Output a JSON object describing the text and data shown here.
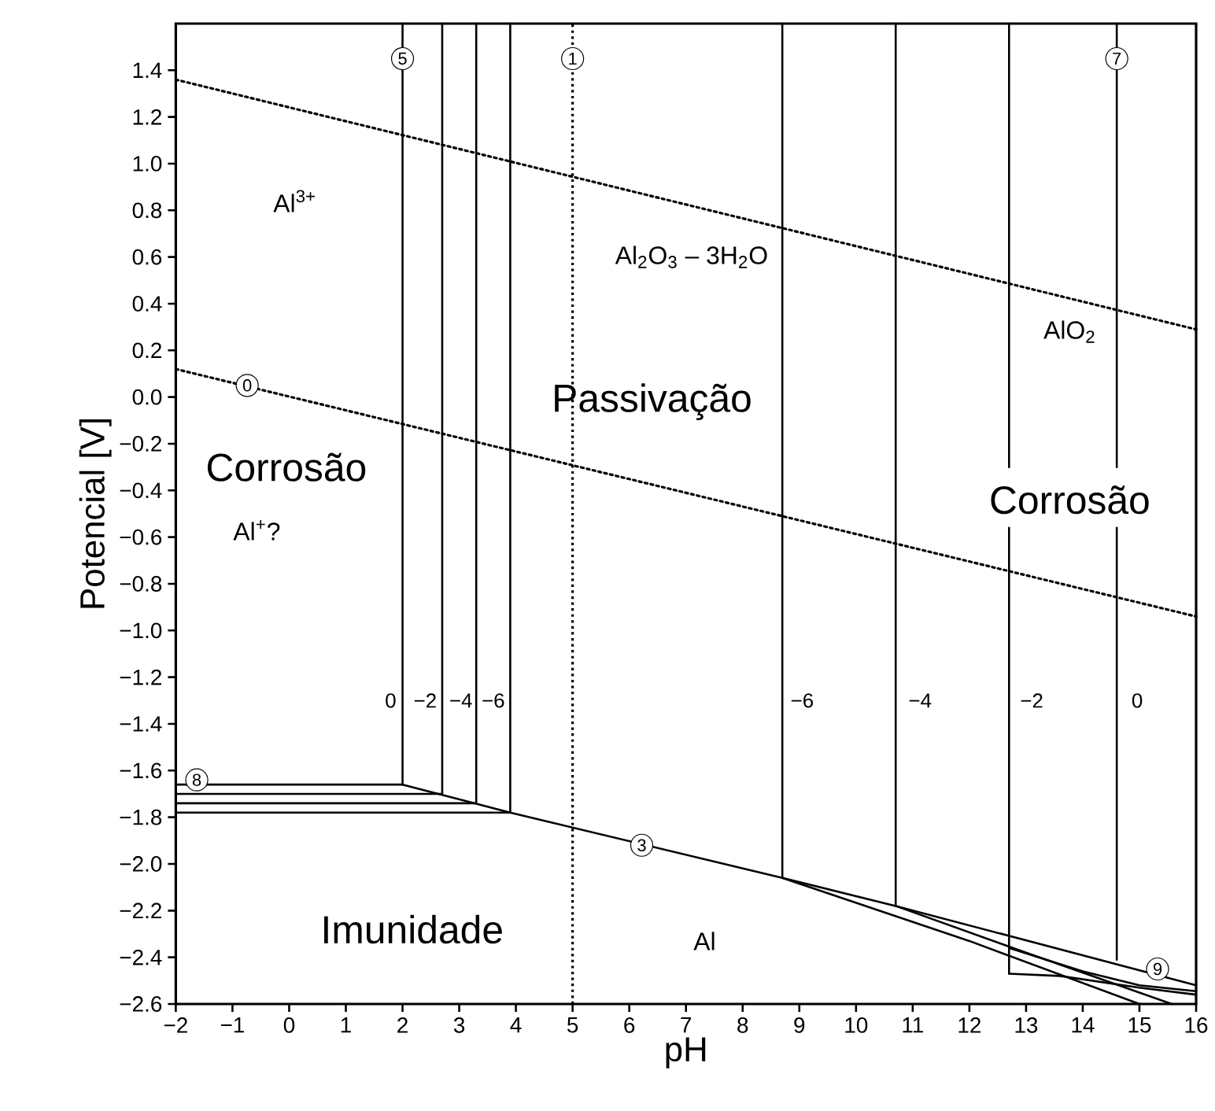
{
  "chart_data": {
    "type": "line",
    "xlabel": "pH",
    "ylabel": "Potencial [V]",
    "xlim": [
      -2,
      16
    ],
    "ylim": [
      -2.6,
      1.6
    ],
    "xticks": [
      {
        "value": -2,
        "label": "−2"
      },
      {
        "value": -1,
        "label": "−1"
      },
      0,
      1,
      2,
      3,
      4,
      5,
      6,
      7,
      8,
      9,
      10,
      11,
      12,
      13,
      14,
      15,
      16
    ],
    "yticks": [
      {
        "value": -2.6,
        "label": "−2.6"
      },
      {
        "value": -2.4,
        "label": "−2.4"
      },
      {
        "value": -2.2,
        "label": "−2.2"
      },
      {
        "value": -2.0,
        "label": "−2.0"
      },
      {
        "value": -1.8,
        "label": "−1.8"
      },
      {
        "value": -1.6,
        "label": "−1.6"
      },
      {
        "value": -1.4,
        "label": "−1.4"
      },
      {
        "value": -1.2,
        "label": "−1.2"
      },
      {
        "value": -1.0,
        "label": "−1.0"
      },
      {
        "value": -0.8,
        "label": "−0.8"
      },
      {
        "value": -0.6,
        "label": "−0.6"
      },
      {
        "value": -0.4,
        "label": "−0.4"
      },
      {
        "value": -0.2,
        "label": "−0.2"
      },
      {
        "value": 0.0,
        "label": "0.0"
      },
      0.2,
      0.4,
      0.6,
      0.8,
      {
        "value": 1.0,
        "label": "1.0"
      },
      1.2,
      1.4
    ],
    "grid": false,
    "marker": "none",
    "series": [
      {
        "color": "#000000",
        "line_style": "dotted",
        "x": [
          -2,
          16
        ],
        "values": [
          1.36,
          0.29
        ]
      },
      {
        "color": "#000000",
        "line_style": "dotted",
        "x": [
          -2,
          16
        ],
        "values": [
          0.12,
          -0.94
        ]
      },
      {
        "color": "#000000",
        "line_style": "solid",
        "x": [
          -2,
          2,
          2
        ],
        "values": [
          -1.66,
          -1.66,
          1.6
        ]
      },
      {
        "color": "#000000",
        "line_style": "solid",
        "x": [
          -2,
          2.7,
          2.7
        ],
        "values": [
          -1.7,
          -1.7,
          1.6
        ]
      },
      {
        "color": "#000000",
        "line_style": "solid",
        "x": [
          -2,
          3.3,
          3.3
        ],
        "values": [
          -1.74,
          -1.74,
          1.6
        ]
      },
      {
        "color": "#000000",
        "line_style": "solid",
        "x": [
          -2,
          3.9,
          3.9
        ],
        "values": [
          -1.78,
          -1.78,
          1.6
        ]
      },
      {
        "color": "#000000",
        "line_style": "solid",
        "x": [
          2,
          3.9,
          8.7,
          10.7,
          16
        ],
        "values": [
          -1.66,
          -1.78,
          -2.06,
          -2.18,
          -2.52
        ]
      },
      {
        "color": "#000000",
        "line_style": "solid",
        "x": [
          8.7,
          8.7
        ],
        "values": [
          1.6,
          -2.06
        ]
      },
      {
        "color": "#000000",
        "line_style": "solid",
        "x": [
          10.7,
          10.7
        ],
        "values": [
          1.6,
          -2.18
        ]
      },
      {
        "color": "#000000",
        "line_style": "solid",
        "x": [
          12.7,
          12.7
        ],
        "values": [
          1.6,
          -0.3
        ]
      },
      {
        "color": "#000000",
        "line_style": "solid",
        "x": [
          12.7,
          12.7
        ],
        "values": [
          -0.56,
          -2.47
        ]
      },
      {
        "color": "#000000",
        "line_style": "solid",
        "x": [
          12.7,
          13.6,
          15,
          16
        ],
        "values": [
          -2.47,
          -2.48,
          -2.53,
          -2.56
        ]
      },
      {
        "color": "#000000",
        "line_style": "solid",
        "x": [
          14.6,
          14.6
        ],
        "values": [
          1.6,
          -0.3
        ]
      },
      {
        "color": "#000000",
        "line_style": "solid",
        "x": [
          14.6,
          14.6
        ],
        "values": [
          -0.56,
          -2.41
        ]
      },
      {
        "color": "#000000",
        "line_style": "solid",
        "x": [
          8.7,
          12,
          15
        ],
        "values": [
          -2.06,
          -2.33,
          -2.6
        ]
      },
      {
        "color": "#000000",
        "line_style": "solid",
        "x": [
          10.7,
          13,
          15.57
        ],
        "values": [
          -2.18,
          -2.38,
          -2.6
        ]
      },
      {
        "color": "#000000",
        "line_style": "solid",
        "x": [
          12.7,
          14,
          15,
          16
        ],
        "values": [
          -2.36,
          -2.46,
          -2.52,
          -2.545
        ]
      }
    ],
    "ref_lines": [
      {
        "axis": "x",
        "value": 5,
        "color": "#000000",
        "line_style": "dotted"
      }
    ],
    "annotations": [
      "Passivação",
      "Corrosão",
      "Corrosão",
      "Imunidade",
      "Al$^{3+}$",
      "Al$_{2}$O$_{3}$ – 3H$_{2}$O",
      "AlO$_{2}$",
      "Al$^{+}$?",
      "Al",
      "0",
      "−2",
      "−4",
      "−6",
      "−6",
      "−4",
      "−2",
      "0",
      {
        "text": "5",
        "x": 2,
        "y": 1.45
      },
      {
        "text": "1",
        "x": 5,
        "y": 1.45
      },
      {
        "text": "7",
        "x": 14.6,
        "y": 1.45
      },
      {
        "text": "0",
        "x": -0.74,
        "y": 0.05
      },
      {
        "text": "8",
        "x": -1.63,
        "y": -1.64
      },
      {
        "text": "3",
        "x": 6.22,
        "y": -1.92
      },
      {
        "text": "9",
        "x": 15.32,
        "y": -2.45
      }
    ]
  }
}
